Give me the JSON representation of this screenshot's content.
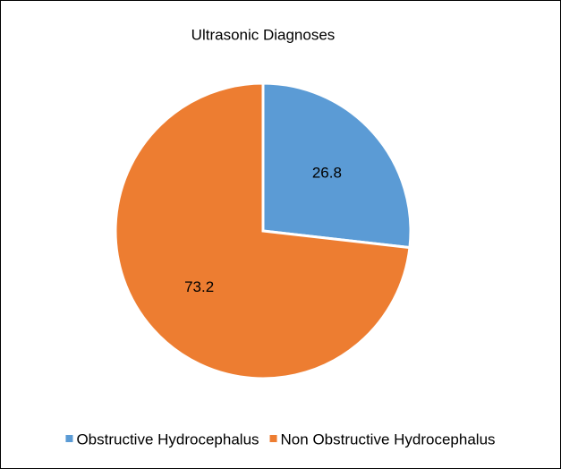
{
  "chart_data": {
    "type": "pie",
    "title": "Ultrasonic Diagnoses",
    "categories": [
      "Obstructive Hydrocephalus",
      "Non Obstructive Hydrocephalus"
    ],
    "values": [
      26.8,
      73.2
    ],
    "colors": [
      "#5b9bd5",
      "#ed7d31"
    ],
    "legend": "bottom"
  }
}
